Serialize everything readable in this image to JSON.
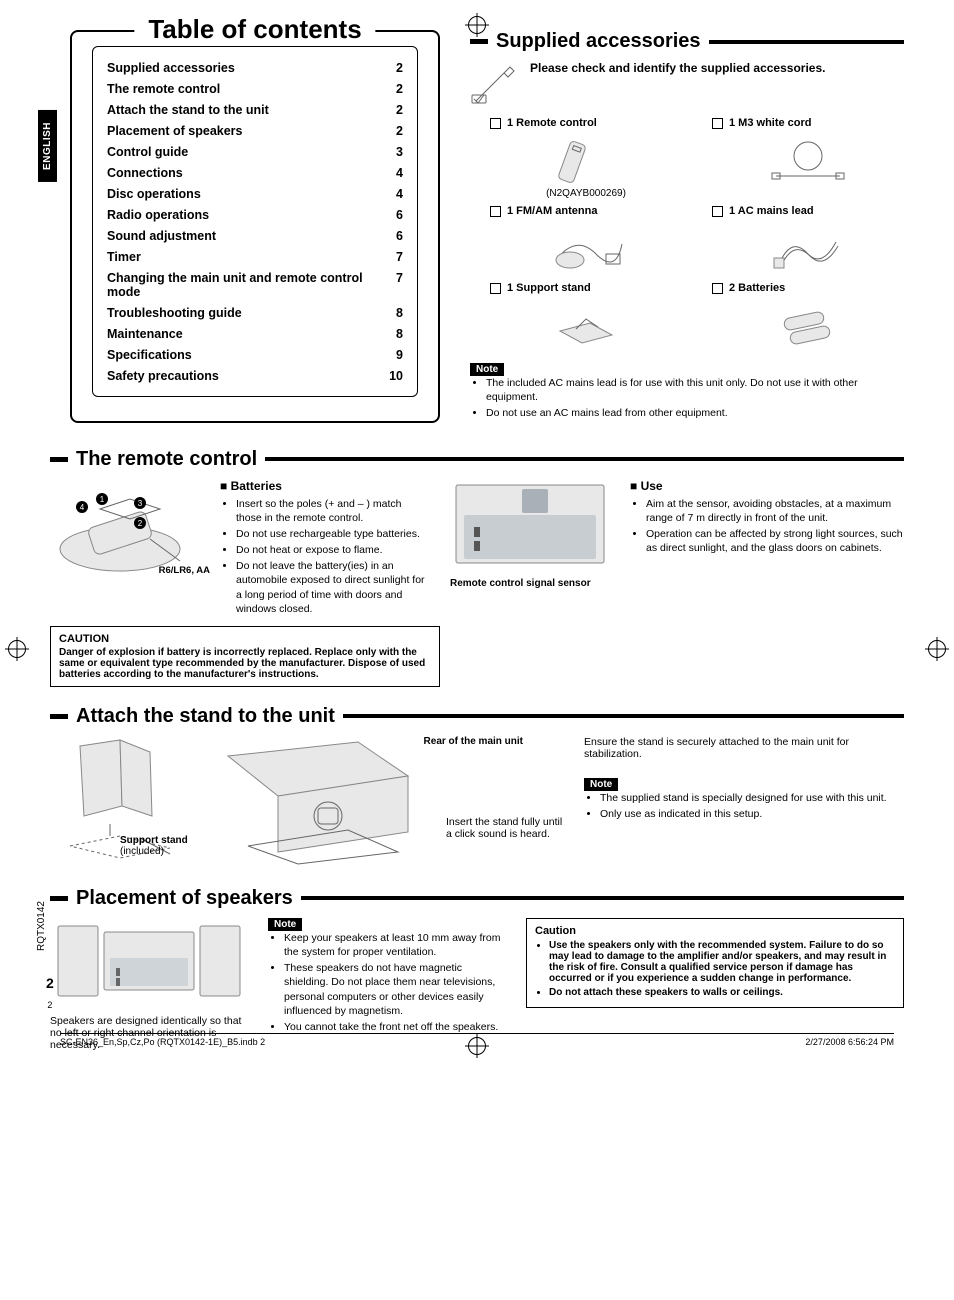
{
  "lang_tab": "ENGLISH",
  "toc": {
    "title": "Table of contents",
    "items": [
      {
        "label": "Supplied accessories",
        "page": "2"
      },
      {
        "label": "The remote control",
        "page": "2"
      },
      {
        "label": "Attach the stand to the unit",
        "page": "2"
      },
      {
        "label": "Placement of speakers",
        "page": "2"
      },
      {
        "label": "Control guide",
        "page": "3"
      },
      {
        "label": "Connections",
        "page": "4"
      },
      {
        "label": "Disc operations",
        "page": "4"
      },
      {
        "label": "Radio operations",
        "page": "6"
      },
      {
        "label": "Sound adjustment",
        "page": "6"
      },
      {
        "label": "Timer",
        "page": "7"
      },
      {
        "label": "Changing the main unit and remote control mode",
        "page": "7"
      },
      {
        "label": "Troubleshooting guide",
        "page": "8"
      },
      {
        "label": "Maintenance",
        "page": "8"
      },
      {
        "label": "Specifications",
        "page": "9"
      },
      {
        "label": "Safety precautions",
        "page": "10"
      }
    ]
  },
  "supplied": {
    "heading": "Supplied accessories",
    "check_text": "Please check and identify the supplied accessories.",
    "items": [
      {
        "label": "1 Remote control",
        "part_no": "(N2QAYB000269)"
      },
      {
        "label": "1 M3 white cord"
      },
      {
        "label": "1 FM/AM antenna"
      },
      {
        "label": "1 AC mains lead"
      },
      {
        "label": "1 Support stand"
      },
      {
        "label": "2 Batteries"
      }
    ],
    "note_label": "Note",
    "notes": [
      "The included AC mains lead is for use with this unit only. Do not use it with other equipment.",
      "Do not use an AC mains lead from other equipment."
    ]
  },
  "remote": {
    "heading": "The remote control",
    "battery_type": "R6/LR6, AA",
    "batteries_heading": "Batteries",
    "batteries_bullets": [
      "Insert so the poles (+ and – ) match those in the remote control.",
      "Do not use rechargeable type batteries.",
      "Do not heat or expose to flame.",
      "Do not leave the battery(ies) in an automobile exposed to direct sunlight for a long period of time with doors and windows closed."
    ],
    "sensor_label": "Remote control signal sensor",
    "use_heading": "Use",
    "use_bullets": [
      "Aim at the sensor, avoiding obstacles, at a maximum range of 7 m directly in front of the unit.",
      "Operation can be affected by strong light sources, such as direct sunlight, and the glass doors on cabinets."
    ],
    "caution_title": "CAUTION",
    "caution_body": "Danger of explosion if battery is incorrectly replaced. Replace only with the same or equivalent type recommended by the manufacturer. Dispose of used batteries according to the manufacturer's instructions."
  },
  "attach": {
    "heading": "Attach the stand to the unit",
    "support_label": "Support stand",
    "support_sub": "(included)",
    "rear_label": "Rear of the main unit",
    "insert_text": "Insert the stand fully until a click sound is heard.",
    "ensure_text": "Ensure the stand is securely attached to the main unit for stabilization.",
    "note_label": "Note",
    "notes": [
      "The supplied stand is specially designed for use with this unit.",
      "Only use as indicated in this setup."
    ]
  },
  "placement": {
    "heading": "Placement of speakers",
    "caption": "Speakers are designed identically so that no left or right channel orientation is necessary.",
    "note_label": "Note",
    "notes": [
      "Keep your speakers at least 10 mm away from the system for proper ventilation.",
      "These speakers do not have magnetic shielding. Do not place them near televisions, personal computers or other devices easily influenced by magnetism.",
      "You cannot take the front net off the speakers."
    ],
    "caution_title": "Caution",
    "caution_bullets": [
      "Use the speakers only with the recommended system. Failure to do so may lead to damage to the amplifier and/or speakers, and may result in the risk of fire. Consult a qualified service person if damage has occurred or if you experience a sudden change in performance.",
      "Do not attach these speakers to walls or ceilings."
    ]
  },
  "side_code": "RQTX0142",
  "page_number_main": "2",
  "page_number_sub": "2",
  "footer_left": "SC-EN36_En,Sp,Cz,Po (RQTX0142-1E)_B5.indb   2",
  "footer_right": "2/27/2008   6:56:24 PM"
}
